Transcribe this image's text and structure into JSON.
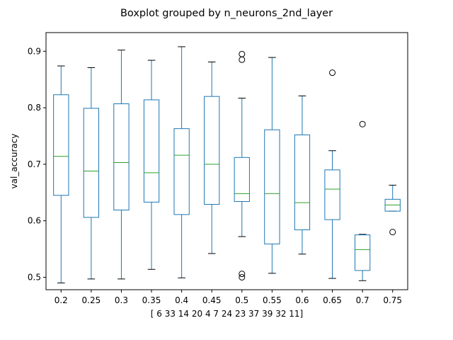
{
  "chart_data": {
    "type": "boxplot",
    "title": "Boxplot grouped by n_neurons_2nd_layer",
    "xlabel": "[ 6 33 14 20  4  7 24 23 37 39 32 11]",
    "ylabel": "val_accuracy",
    "ylim": [
      0.478,
      0.933
    ],
    "yticks": [
      "0.5",
      "0.6",
      "0.7",
      "0.8",
      "0.9"
    ],
    "grid": false,
    "colors": {
      "box": "#1f77b4",
      "median": "#2ca02c",
      "whisker_cap": "#000000",
      "flier": "#000000"
    },
    "categories": [
      "0.2",
      "0.25",
      "0.3",
      "0.35",
      "0.4",
      "0.45",
      "0.5",
      "0.55",
      "0.6",
      "0.65",
      "0.7",
      "0.75"
    ],
    "boxes": [
      {
        "whislo": 0.49,
        "q1": 0.645,
        "med": 0.714,
        "q3": 0.823,
        "whishi": 0.874,
        "fliers": []
      },
      {
        "whislo": 0.497,
        "q1": 0.606,
        "med": 0.688,
        "q3": 0.799,
        "whishi": 0.871,
        "fliers": []
      },
      {
        "whislo": 0.497,
        "q1": 0.619,
        "med": 0.703,
        "q3": 0.807,
        "whishi": 0.902,
        "fliers": []
      },
      {
        "whislo": 0.514,
        "q1": 0.633,
        "med": 0.685,
        "q3": 0.814,
        "whishi": 0.884,
        "fliers": []
      },
      {
        "whislo": 0.499,
        "q1": 0.611,
        "med": 0.716,
        "q3": 0.763,
        "whishi": 0.908,
        "fliers": []
      },
      {
        "whislo": 0.542,
        "q1": 0.629,
        "med": 0.7,
        "q3": 0.82,
        "whishi": 0.881,
        "fliers": []
      },
      {
        "whislo": 0.572,
        "q1": 0.634,
        "med": 0.648,
        "q3": 0.712,
        "whishi": 0.817,
        "fliers": [
          0.895,
          0.885,
          0.506,
          0.5
        ]
      },
      {
        "whislo": 0.507,
        "q1": 0.559,
        "med": 0.648,
        "q3": 0.761,
        "whishi": 0.889,
        "fliers": []
      },
      {
        "whislo": 0.541,
        "q1": 0.584,
        "med": 0.632,
        "q3": 0.752,
        "whishi": 0.821,
        "fliers": []
      },
      {
        "whislo": 0.498,
        "q1": 0.602,
        "med": 0.656,
        "q3": 0.69,
        "whishi": 0.724,
        "fliers": [
          0.862
        ]
      },
      {
        "whislo": 0.494,
        "q1": 0.512,
        "med": 0.549,
        "q3": 0.575,
        "whishi": 0.576,
        "fliers": [
          0.771
        ]
      },
      {
        "whislo": 0.617,
        "q1": 0.617,
        "med": 0.628,
        "q3": 0.638,
        "whishi": 0.663,
        "fliers": [
          0.58
        ]
      }
    ]
  }
}
